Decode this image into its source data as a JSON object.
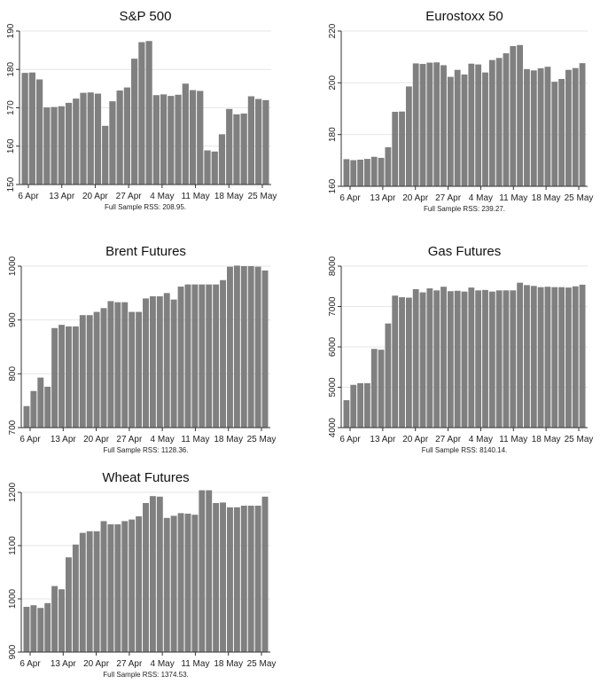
{
  "colors": {
    "bar": "#808080",
    "grid": "#e6e6e6",
    "axis": "#333333",
    "background": "#ffffff"
  },
  "x_tick_labels": [
    "6 Apr",
    "13 Apr",
    "20 Apr",
    "27 Apr",
    "4 May",
    "11 May",
    "18 May",
    "25 May"
  ],
  "chart_data": [
    {
      "type": "bar",
      "title": "S&P 500",
      "note": "Full Sample RSS: 208.95.",
      "ylim": [
        150,
        190
      ],
      "yticks": [
        150,
        160,
        170,
        180,
        190
      ],
      "grid": true,
      "xticks": [
        "6 Apr",
        "13 Apr",
        "20 Apr",
        "27 Apr",
        "4 May",
        "11 May",
        "18 May",
        "25 May"
      ],
      "values": [
        179.1,
        179.2,
        177.4,
        170.1,
        170.2,
        170.4,
        171.3,
        172.4,
        173.9,
        174.0,
        173.7,
        165.3,
        171.7,
        174.5,
        175.3,
        182.8,
        187.1,
        187.4,
        173.3,
        173.5,
        173.1,
        173.4,
        176.3,
        174.6,
        174.4,
        158.9,
        158.6,
        163.1,
        169.7,
        168.3,
        168.5,
        173.0,
        172.3,
        172.0
      ]
    },
    {
      "type": "bar",
      "title": "Eurostoxx 50",
      "note": "Full Sample RSS: 239.27.",
      "ylim": [
        160,
        220
      ],
      "yticks": [
        160,
        180,
        200,
        220
      ],
      "grid": true,
      "xticks": [
        "6 Apr",
        "13 Apr",
        "20 Apr",
        "27 Apr",
        "4 May",
        "11 May",
        "18 May",
        "25 May"
      ],
      "values": [
        170.5,
        170.1,
        170.3,
        170.6,
        171.4,
        171.0,
        175.1,
        188.8,
        188.9,
        198.6,
        207.5,
        207.3,
        207.8,
        207.9,
        206.8,
        202.3,
        205.0,
        203.2,
        207.4,
        207.1,
        204.0,
        208.8,
        209.6,
        211.4,
        214.2,
        214.6,
        205.3,
        204.8,
        205.6,
        206.2,
        200.4,
        201.5,
        205.0,
        205.7,
        207.6
      ]
    },
    {
      "type": "bar",
      "title": "Brent Futures",
      "note": "Full Sample RSS: 1128.36.",
      "ylim": [
        700,
        1000
      ],
      "yticks": [
        700,
        800,
        900,
        1000
      ],
      "grid": true,
      "xticks": [
        "6 Apr",
        "13 Apr",
        "20 Apr",
        "27 Apr",
        "4 May",
        "11 May",
        "18 May",
        "25 May"
      ],
      "values": [
        740,
        768,
        793,
        776,
        885,
        891,
        888,
        888,
        909,
        909,
        915,
        922,
        935,
        933,
        933,
        915,
        915,
        940,
        944,
        944,
        950,
        938,
        962,
        966,
        966,
        966,
        966,
        966,
        974,
        999,
        1001,
        1000,
        1000,
        999,
        992
      ]
    },
    {
      "type": "bar",
      "title": "Gas Futures",
      "note": "Full Sample RSS: 8140.14.",
      "ylim": [
        4000,
        8000
      ],
      "yticks": [
        4000,
        5000,
        6000,
        7000,
        8000
      ],
      "grid": true,
      "xticks": [
        "6 Apr",
        "13 Apr",
        "20 Apr",
        "27 Apr",
        "4 May",
        "11 May",
        "18 May",
        "25 May"
      ],
      "values": [
        4680,
        5060,
        5100,
        5100,
        5950,
        5930,
        6580,
        7270,
        7230,
        7220,
        7430,
        7350,
        7450,
        7400,
        7490,
        7380,
        7390,
        7370,
        7470,
        7400,
        7410,
        7370,
        7400,
        7400,
        7400,
        7590,
        7530,
        7510,
        7480,
        7490,
        7480,
        7480,
        7470,
        7500,
        7540
      ]
    },
    {
      "type": "bar",
      "title": "Wheat Futures",
      "note": "Full Sample RSS: 1374.53.",
      "ylim": [
        900,
        1200
      ],
      "yticks": [
        900,
        1000,
        1100,
        1200
      ],
      "grid": true,
      "xticks": [
        "6 Apr",
        "13 Apr",
        "20 Apr",
        "27 Apr",
        "4 May",
        "11 May",
        "18 May",
        "25 May"
      ],
      "values": [
        985,
        988,
        983,
        992,
        1024,
        1018,
        1078,
        1102,
        1124,
        1127,
        1127,
        1146,
        1140,
        1140,
        1146,
        1149,
        1155,
        1180,
        1193,
        1192,
        1152,
        1156,
        1161,
        1160,
        1158,
        1204,
        1204,
        1180,
        1181,
        1172,
        1172,
        1175,
        1175,
        1175,
        1192
      ]
    }
  ]
}
